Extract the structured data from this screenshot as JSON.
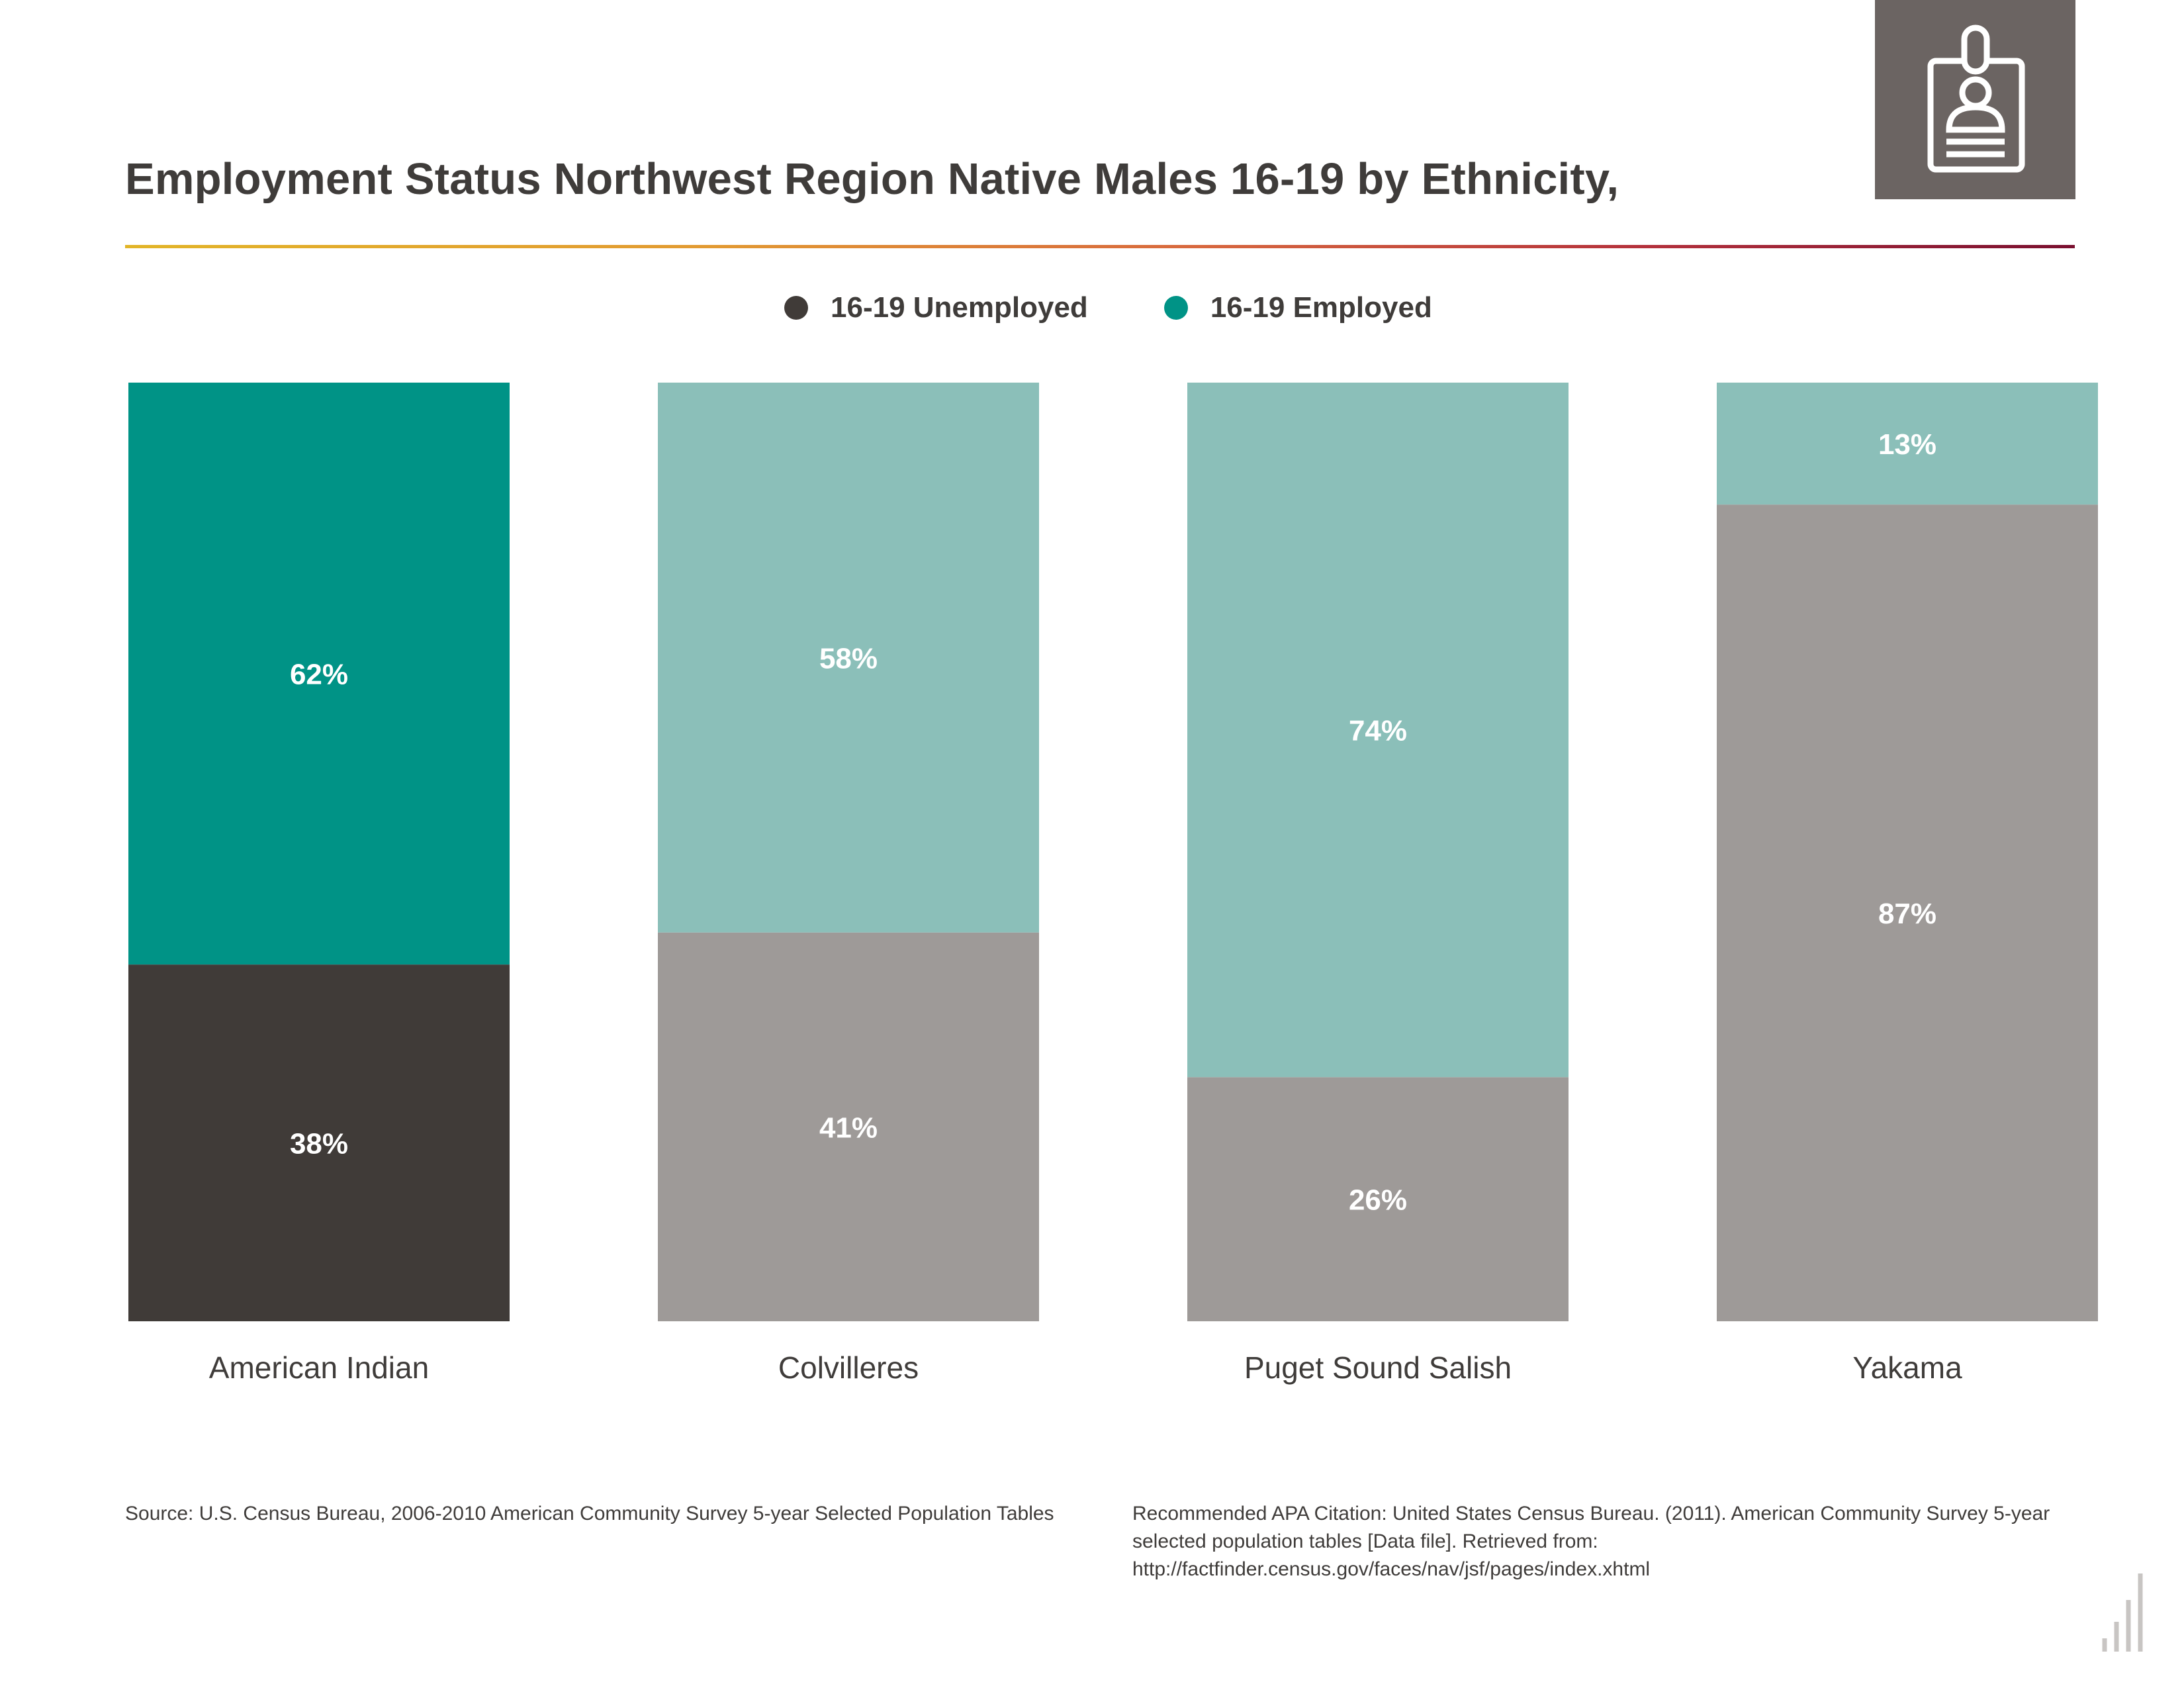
{
  "header": {
    "title": "Employment Status Northwest Region Native Males 16-19 by Ethnicity,",
    "icon": "id-badge-icon"
  },
  "legend": [
    {
      "label": "16-19 Unemployed",
      "color": "#403b38"
    },
    {
      "label": "16-19 Employed",
      "color": "#009386"
    }
  ],
  "chart_data": {
    "type": "bar",
    "stacked": true,
    "title": "Employment Status Northwest Region Native Males 16-19 by Ethnicity,",
    "categories": [
      "American Indian",
      "Colvilleres",
      "Puget Sound Salish",
      "Yakama"
    ],
    "series": [
      {
        "name": "16-19 Unemployed",
        "values": [
          38,
          41,
          26,
          87
        ],
        "labels": [
          "38%",
          "41%",
          "26%",
          "87%"
        ]
      },
      {
        "name": "16-19 Employed",
        "values": [
          62,
          58,
          74,
          13
        ],
        "labels": [
          "62%",
          "58%",
          "74%",
          "13%"
        ]
      }
    ],
    "highlight_category": "American Indian",
    "colors": {
      "highlight_unemployed": "#403b38",
      "highlight_employed": "#009386",
      "unemployed": "#9e9a98",
      "employed": "#8bbfb9",
      "value_label": "#ffffff",
      "category_label": "#3f3c3a"
    },
    "ylim": [
      0,
      100
    ],
    "grid": false,
    "legend_position": "top-center"
  },
  "footer": {
    "source": "Source:  U.S. Census Bureau, 2006-2010 American Community Survey 5-year Selected Population Tables",
    "citation": "Recommended APA Citation: United States Census Bureau. (2011). American Community Survey 5-year selected population tables [Data file]. Retrieved from: http://factfinder.census.gov/faces/nav/jsf/pages/index.xhtml"
  }
}
